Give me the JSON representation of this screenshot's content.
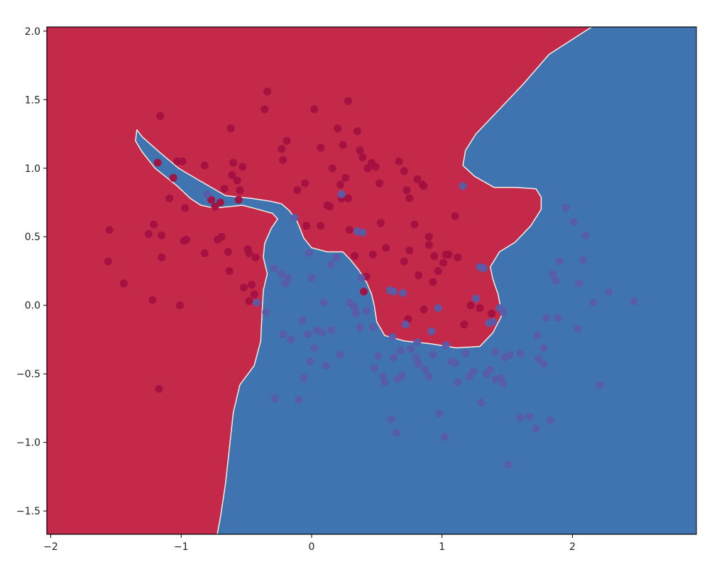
{
  "colors": {
    "class_0_region": "#c4294a",
    "class_1_region": "#3f74b0",
    "class_0_point": "#a3103f",
    "class_1_point": "#5a5ca9",
    "boundary": "#f2efe6"
  },
  "chart_data": {
    "type": "scatter",
    "title": "",
    "xlabel": "",
    "ylabel": "",
    "xlim": [
      -2.03,
      2.95
    ],
    "ylim": [
      -1.67,
      2.03
    ],
    "grid": false,
    "legend": "none",
    "x_ticks": [
      {
        "value": -2,
        "label": "−2"
      },
      {
        "value": -1,
        "label": "−1"
      },
      {
        "value": 0,
        "label": "0"
      },
      {
        "value": 1,
        "label": "1"
      },
      {
        "value": 2,
        "label": "2"
      }
    ],
    "y_ticks": [
      {
        "value": -1.5,
        "label": "−1.5"
      },
      {
        "value": -1.0,
        "label": "−1.0"
      },
      {
        "value": -0.5,
        "label": "−0.5"
      },
      {
        "value": 0.0,
        "label": "0.0"
      },
      {
        "value": 0.5,
        "label": "0.5"
      },
      {
        "value": 1.0,
        "label": "1.0"
      },
      {
        "value": 1.5,
        "label": "1.5"
      },
      {
        "value": 2.0,
        "label": "2.0"
      }
    ],
    "decision_regions": [
      {
        "class": 1,
        "polygon": [
          [
            -1.34,
            1.28
          ],
          [
            -1.3,
            1.23
          ],
          [
            -1.17,
            1.12
          ],
          [
            -1.02,
            1.0
          ],
          [
            -0.86,
            0.91
          ],
          [
            -0.66,
            0.8
          ],
          [
            -0.46,
            0.78
          ],
          [
            -0.32,
            0.76
          ],
          [
            -0.23,
            0.74
          ],
          [
            -0.17,
            0.69
          ],
          [
            -0.11,
            0.61
          ],
          [
            -0.06,
            0.49
          ],
          [
            0.0,
            0.42
          ],
          [
            0.12,
            0.39
          ],
          [
            0.24,
            0.39
          ],
          [
            0.3,
            0.33
          ],
          [
            0.36,
            0.26
          ],
          [
            0.42,
            0.17
          ],
          [
            0.46,
            0.08
          ],
          [
            0.48,
            0.0
          ],
          [
            0.5,
            -0.12
          ],
          [
            0.56,
            -0.22
          ],
          [
            0.71,
            -0.26
          ],
          [
            0.91,
            -0.28
          ],
          [
            1.11,
            -0.31
          ],
          [
            1.29,
            -0.3
          ],
          [
            1.39,
            -0.2
          ],
          [
            1.46,
            -0.07
          ],
          [
            1.43,
            0.08
          ],
          [
            1.39,
            0.19
          ],
          [
            1.37,
            0.28
          ],
          [
            1.44,
            0.39
          ],
          [
            1.56,
            0.46
          ],
          [
            1.68,
            0.58
          ],
          [
            1.76,
            0.7
          ],
          [
            1.76,
            0.79
          ],
          [
            1.72,
            0.85
          ],
          [
            1.56,
            0.86
          ],
          [
            1.4,
            0.86
          ],
          [
            1.25,
            0.94
          ],
          [
            1.16,
            1.02
          ],
          [
            1.18,
            1.13
          ],
          [
            1.26,
            1.25
          ],
          [
            1.42,
            1.41
          ],
          [
            1.62,
            1.61
          ],
          [
            1.82,
            1.83
          ],
          [
            2.18,
            2.05
          ],
          [
            2.95,
            2.05
          ],
          [
            2.95,
            -1.7
          ],
          [
            -0.73,
            -1.7
          ],
          [
            -0.7,
            -1.55
          ],
          [
            -0.66,
            -1.3
          ],
          [
            -0.63,
            -1.04
          ],
          [
            -0.6,
            -0.78
          ],
          [
            -0.55,
            -0.58
          ],
          [
            -0.44,
            -0.44
          ],
          [
            -0.39,
            -0.26
          ],
          [
            -0.38,
            -0.05
          ],
          [
            -0.37,
            0.11
          ],
          [
            -0.34,
            0.23
          ],
          [
            -0.37,
            0.35
          ],
          [
            -0.36,
            0.45
          ],
          [
            -0.31,
            0.56
          ],
          [
            -0.26,
            0.63
          ],
          [
            -0.3,
            0.67
          ],
          [
            -0.41,
            0.7
          ],
          [
            -0.53,
            0.73
          ],
          [
            -0.63,
            0.72
          ],
          [
            -0.75,
            0.71
          ],
          [
            -0.85,
            0.73
          ],
          [
            -0.93,
            0.78
          ],
          [
            -1.03,
            0.87
          ],
          [
            -1.2,
            1.0
          ],
          [
            -1.3,
            1.12
          ],
          [
            -1.35,
            1.2
          ]
        ]
      }
    ],
    "series": [
      {
        "class": 0,
        "x": [
          -1.18,
          -1.03,
          -1.06,
          -0.82,
          -1.09,
          -0.97,
          -0.77,
          -0.74,
          -0.7,
          -0.67,
          -0.57,
          -0.53,
          -1.55,
          -1.56,
          -1.44,
          -1.25,
          -1.21,
          -1.15,
          -1.15,
          -0.98,
          -0.96,
          -0.82,
          -0.72,
          -0.69,
          -0.64,
          -0.63,
          -0.61,
          -0.6,
          -0.55,
          -0.49,
          -0.46,
          -0.43,
          -1.22,
          -1.01,
          -0.52,
          -0.48,
          -0.44,
          -1.16,
          -1.17,
          -0.62,
          -0.36,
          -0.34,
          -0.23,
          -0.22,
          -0.19,
          -0.11,
          -0.05,
          0.02,
          0.07,
          0.12,
          0.16,
          0.22,
          0.28,
          0.28,
          0.35,
          0.37,
          0.39,
          0.43,
          0.46,
          0.49,
          0.52,
          0.29,
          0.33,
          0.4,
          0.42,
          0.47,
          -0.04,
          0.07,
          0.14,
          0.23,
          0.26,
          0.24,
          0.53,
          0.57,
          0.67,
          0.71,
          0.73,
          0.75,
          0.75,
          0.85,
          0.86,
          0.81,
          0.71,
          0.79,
          0.82,
          0.9,
          0.9,
          0.93,
          0.94,
          0.97,
          1.01,
          1.05,
          1.1,
          1.12,
          1.03,
          0.86,
          1.17,
          1.22,
          1.29,
          1.38,
          -0.56,
          -0.48,
          -0.99,
          0.2,
          0.74
        ],
        "y": [
          1.04,
          1.05,
          0.93,
          1.02,
          0.78,
          0.71,
          0.77,
          0.72,
          0.75,
          0.85,
          0.91,
          1.01,
          0.55,
          0.32,
          0.16,
          0.52,
          0.59,
          0.51,
          0.35,
          0.47,
          0.48,
          0.38,
          0.48,
          0.5,
          0.39,
          0.25,
          0.95,
          1.04,
          0.84,
          0.41,
          0.15,
          0.35,
          0.04,
          0.0,
          0.13,
          0.03,
          0.08,
          1.38,
          -0.61,
          1.29,
          1.43,
          1.56,
          1.14,
          1.06,
          1.2,
          0.84,
          0.89,
          1.43,
          1.15,
          0.73,
          1.0,
          0.88,
          0.78,
          1.49,
          1.27,
          1.13,
          1.08,
          1.0,
          1.04,
          1.01,
          0.89,
          0.55,
          0.36,
          0.1,
          0.21,
          0.37,
          0.58,
          0.58,
          0.72,
          0.78,
          0.93,
          1.17,
          0.6,
          0.42,
          1.05,
          0.98,
          0.84,
          0.78,
          0.4,
          0.88,
          0.87,
          0.92,
          0.32,
          0.59,
          0.22,
          0.5,
          0.44,
          0.17,
          0.36,
          0.25,
          0.31,
          0.37,
          0.65,
          0.35,
          0.37,
          -0.03,
          -0.14,
          0.0,
          -0.02,
          -0.06,
          0.77,
          0.38,
          1.05,
          1.29,
          -0.1
        ],
        "note": "class 0 points (dark red)"
      },
      {
        "class": 1,
        "x": [
          -0.8,
          -0.42,
          -0.35,
          -0.29,
          -0.23,
          -0.2,
          -0.18,
          -0.13,
          -0.07,
          -0.03,
          -0.02,
          0.04,
          0.09,
          0.11,
          0.15,
          0.19,
          0.23,
          0.29,
          0.33,
          0.35,
          0.37,
          0.38,
          0.48,
          0.51,
          0.56,
          0.61,
          0.63,
          0.65,
          0.68,
          0.7,
          0.72,
          0.76,
          0.8,
          0.82,
          0.87,
          0.9,
          0.93,
          0.98,
          1.02,
          1.07,
          1.12,
          1.18,
          1.24,
          1.3,
          1.34,
          1.37,
          1.41,
          1.45,
          1.48,
          1.52,
          1.6,
          1.67,
          1.72,
          1.78,
          1.83,
          1.89,
          1.95,
          2.01,
          2.05,
          2.08,
          2.16,
          2.21,
          2.28,
          2.47,
          1.85,
          1.9,
          2.04,
          2.1,
          1.87,
          1.73,
          1.8,
          1.78,
          1.74,
          1.44,
          1.47,
          1.47,
          1.51,
          1.41,
          1.32,
          1.26,
          1.29,
          1.36,
          1.39,
          1.03,
          0.97,
          0.92,
          0.82,
          0.81,
          0.62,
          0.66,
          0.69,
          0.55,
          0.47,
          0.42,
          0.32,
          0.34,
          0.22,
          0.15,
          0.08,
          0.02,
          -0.01,
          -0.06,
          -0.1,
          -0.16,
          -0.22,
          -0.28,
          0.0,
          1.16,
          1.1,
          1.21,
          0.39,
          0.63,
          0.6,
          1.6
        ],
        "y": [
          0.81,
          0.02,
          -0.05,
          0.27,
          0.23,
          0.16,
          0.2,
          0.64,
          -0.11,
          -0.21,
          0.38,
          -0.18,
          0.02,
          -0.44,
          0.3,
          0.35,
          0.81,
          0.02,
          -0.02,
          0.54,
          -0.16,
          0.2,
          -0.46,
          -0.37,
          -0.56,
          -0.83,
          -0.38,
          -0.93,
          -0.33,
          0.09,
          -0.14,
          -0.32,
          -0.38,
          -0.42,
          -0.47,
          -0.52,
          -0.36,
          -0.79,
          -0.96,
          -0.41,
          -0.56,
          -0.35,
          -0.48,
          -0.71,
          -0.5,
          -0.47,
          -0.54,
          -0.53,
          -0.38,
          -0.36,
          -0.82,
          -0.81,
          -0.9,
          -0.43,
          -0.84,
          -0.09,
          0.71,
          0.61,
          0.16,
          0.33,
          0.02,
          -0.58,
          0.1,
          0.03,
          0.23,
          0.32,
          -0.17,
          0.51,
          0.18,
          -0.22,
          -0.09,
          -0.31,
          -0.39,
          -0.02,
          -0.05,
          -0.57,
          -1.16,
          -0.34,
          0.27,
          0.05,
          0.28,
          -0.13,
          -0.12,
          -0.29,
          -0.02,
          -0.19,
          -0.43,
          -0.27,
          -0.23,
          -0.54,
          -0.51,
          -0.52,
          -0.16,
          -0.04,
          0.0,
          -0.06,
          -0.36,
          -0.18,
          -0.2,
          -0.31,
          -0.41,
          -0.53,
          -0.69,
          -0.25,
          -0.21,
          -0.68,
          0.2,
          0.87,
          -0.42,
          -0.52,
          0.53,
          0.1,
          0.11,
          -0.35
        ],
        "note": "class 1 points (purple-blue)"
      }
    ]
  }
}
